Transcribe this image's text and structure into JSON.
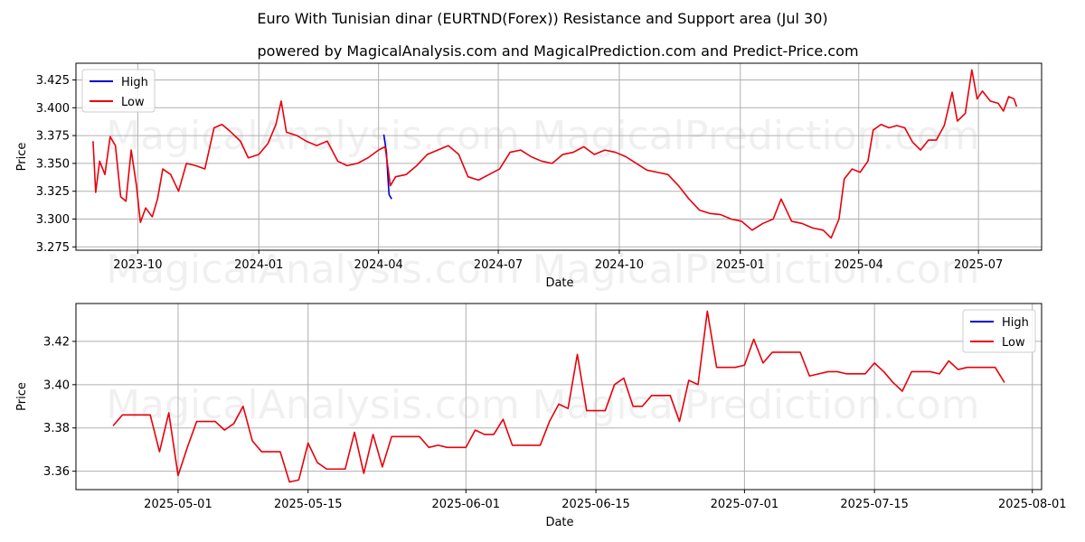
{
  "title": "Euro With Tunisian dinar (EURTND(Forex)) Resistance and Support area (Jul 30)",
  "subtitle": "powered by MagicalAnalysis.com and MagicalPrediction.com and Predict-Price.com",
  "watermarks": [
    "MagicalAnalysis.com",
    "MagicalPrediction.com"
  ],
  "colors": {
    "high": "#0000cc",
    "low": "#e8000b"
  },
  "chart_data": [
    {
      "type": "line",
      "xlabel": "Date",
      "ylabel": "Price",
      "x_axis": "date",
      "xlim": [
        "2023-08-15",
        "2025-08-18"
      ],
      "ylim": [
        3.272,
        3.44
      ],
      "xticks": [
        "2023-10-01",
        "2024-01-01",
        "2024-04-01",
        "2024-07-01",
        "2024-10-01",
        "2025-01-01",
        "2025-04-01",
        "2025-07-01"
      ],
      "xtick_labels": [
        "2023-10",
        "2024-01",
        "2024-04",
        "2024-07",
        "2024-10",
        "2025-01",
        "2025-04",
        "2025-07"
      ],
      "yticks": [
        3.275,
        3.3,
        3.325,
        3.35,
        3.375,
        3.4,
        3.425
      ],
      "ytick_labels": [
        "3.275",
        "3.300",
        "3.325",
        "3.350",
        "3.375",
        "3.400",
        "3.425"
      ],
      "grid": true,
      "legend": "top-left",
      "series_names": [
        "High",
        "Low"
      ],
      "low_points": [
        [
          "2023-08-28",
          3.37
        ],
        [
          "2023-08-30",
          3.324
        ],
        [
          "2023-09-02",
          3.352
        ],
        [
          "2023-09-06",
          3.34
        ],
        [
          "2023-09-10",
          3.374
        ],
        [
          "2023-09-14",
          3.366
        ],
        [
          "2023-09-18",
          3.32
        ],
        [
          "2023-09-22",
          3.316
        ],
        [
          "2023-09-26",
          3.362
        ],
        [
          "2023-09-30",
          3.33
        ],
        [
          "2023-10-03",
          3.297
        ],
        [
          "2023-10-07",
          3.31
        ],
        [
          "2023-10-12",
          3.302
        ],
        [
          "2023-10-16",
          3.318
        ],
        [
          "2023-10-20",
          3.345
        ],
        [
          "2023-10-26",
          3.34
        ],
        [
          "2023-11-01",
          3.325
        ],
        [
          "2023-11-07",
          3.35
        ],
        [
          "2023-11-14",
          3.348
        ],
        [
          "2023-11-21",
          3.345
        ],
        [
          "2023-11-28",
          3.382
        ],
        [
          "2023-12-04",
          3.385
        ],
        [
          "2023-12-10",
          3.379
        ],
        [
          "2023-12-18",
          3.37
        ],
        [
          "2023-12-24",
          3.355
        ],
        [
          "2024-01-01",
          3.358
        ],
        [
          "2024-01-08",
          3.368
        ],
        [
          "2024-01-14",
          3.385
        ],
        [
          "2024-01-18",
          3.406
        ],
        [
          "2024-01-22",
          3.378
        ],
        [
          "2024-01-30",
          3.375
        ],
        [
          "2024-02-06",
          3.37
        ],
        [
          "2024-02-14",
          3.366
        ],
        [
          "2024-02-22",
          3.37
        ],
        [
          "2024-03-01",
          3.352
        ],
        [
          "2024-03-08",
          3.348
        ],
        [
          "2024-03-16",
          3.35
        ],
        [
          "2024-03-24",
          3.355
        ],
        [
          "2024-04-01",
          3.362
        ],
        [
          "2024-04-06",
          3.365
        ],
        [
          "2024-04-10",
          3.33
        ],
        [
          "2024-04-14",
          3.338
        ],
        [
          "2024-04-22",
          3.34
        ],
        [
          "2024-04-30",
          3.348
        ],
        [
          "2024-05-08",
          3.358
        ],
        [
          "2024-05-16",
          3.362
        ],
        [
          "2024-05-24",
          3.366
        ],
        [
          "2024-06-01",
          3.358
        ],
        [
          "2024-06-08",
          3.338
        ],
        [
          "2024-06-16",
          3.335
        ],
        [
          "2024-06-24",
          3.34
        ],
        [
          "2024-07-02",
          3.345
        ],
        [
          "2024-07-10",
          3.36
        ],
        [
          "2024-07-18",
          3.362
        ],
        [
          "2024-07-26",
          3.356
        ],
        [
          "2024-08-03",
          3.352
        ],
        [
          "2024-08-11",
          3.35
        ],
        [
          "2024-08-19",
          3.358
        ],
        [
          "2024-08-27",
          3.36
        ],
        [
          "2024-09-04",
          3.365
        ],
        [
          "2024-09-12",
          3.358
        ],
        [
          "2024-09-20",
          3.362
        ],
        [
          "2024-09-28",
          3.36
        ],
        [
          "2024-10-06",
          3.356
        ],
        [
          "2024-10-14",
          3.35
        ],
        [
          "2024-10-22",
          3.344
        ],
        [
          "2024-10-30",
          3.342
        ],
        [
          "2024-11-07",
          3.34
        ],
        [
          "2024-11-15",
          3.33
        ],
        [
          "2024-11-23",
          3.318
        ],
        [
          "2024-12-01",
          3.308
        ],
        [
          "2024-12-09",
          3.305
        ],
        [
          "2024-12-17",
          3.304
        ],
        [
          "2024-12-25",
          3.3
        ],
        [
          "2025-01-02",
          3.298
        ],
        [
          "2025-01-10",
          3.29
        ],
        [
          "2025-01-18",
          3.296
        ],
        [
          "2025-01-26",
          3.3
        ],
        [
          "2025-02-01",
          3.318
        ],
        [
          "2025-02-09",
          3.298
        ],
        [
          "2025-02-17",
          3.296
        ],
        [
          "2025-02-25",
          3.292
        ],
        [
          "2025-03-05",
          3.29
        ],
        [
          "2025-03-11",
          3.283
        ],
        [
          "2025-03-17",
          3.3
        ],
        [
          "2025-03-21",
          3.336
        ],
        [
          "2025-03-27",
          3.345
        ],
        [
          "2025-04-02",
          3.342
        ],
        [
          "2025-04-08",
          3.352
        ],
        [
          "2025-04-12",
          3.38
        ],
        [
          "2025-04-18",
          3.385
        ],
        [
          "2025-04-24",
          3.382
        ],
        [
          "2025-04-30",
          3.384
        ],
        [
          "2025-05-06",
          3.382
        ],
        [
          "2025-05-12",
          3.369
        ],
        [
          "2025-05-18",
          3.362
        ],
        [
          "2025-05-24",
          3.371
        ],
        [
          "2025-05-30",
          3.371
        ],
        [
          "2025-06-05",
          3.384
        ],
        [
          "2025-06-11",
          3.414
        ],
        [
          "2025-06-15",
          3.388
        ],
        [
          "2025-06-21",
          3.395
        ],
        [
          "2025-06-26",
          3.434
        ],
        [
          "2025-06-30",
          3.408
        ],
        [
          "2025-07-04",
          3.415
        ],
        [
          "2025-07-10",
          3.406
        ],
        [
          "2025-07-16",
          3.404
        ],
        [
          "2025-07-20",
          3.397
        ],
        [
          "2025-07-24",
          3.41
        ],
        [
          "2025-07-28",
          3.408
        ],
        [
          "2025-07-30",
          3.401
        ]
      ],
      "high_points": [
        [
          "2024-04-05",
          3.376
        ],
        [
          "2024-04-07",
          3.36
        ],
        [
          "2024-04-08",
          3.34
        ],
        [
          "2024-04-09",
          3.322
        ],
        [
          "2024-04-11",
          3.318
        ]
      ]
    },
    {
      "type": "line",
      "xlabel": "Date",
      "ylabel": "Price",
      "x_axis": "date",
      "xlim": [
        "2025-04-20",
        "2025-08-02"
      ],
      "ylim": [
        3.3515,
        3.4375
      ],
      "xticks": [
        "2025-05-01",
        "2025-05-15",
        "2025-06-01",
        "2025-06-15",
        "2025-07-01",
        "2025-07-15",
        "2025-08-01"
      ],
      "xtick_labels": [
        "2025-05-01",
        "2025-05-15",
        "2025-06-01",
        "2025-06-15",
        "2025-07-01",
        "2025-07-15",
        "2025-08-01"
      ],
      "yticks": [
        3.36,
        3.38,
        3.4,
        3.42
      ],
      "ytick_labels": [
        "3.36",
        "3.38",
        "3.40",
        "3.42"
      ],
      "grid": true,
      "legend": "top-right",
      "series_names": [
        "High",
        "Low"
      ],
      "low_points": [
        [
          "2025-04-24",
          3.381
        ],
        [
          "2025-04-25",
          3.386
        ],
        [
          "2025-04-27",
          3.386
        ],
        [
          "2025-04-28",
          3.386
        ],
        [
          "2025-04-29",
          3.369
        ],
        [
          "2025-04-30",
          3.387
        ],
        [
          "2025-05-01",
          3.358
        ],
        [
          "2025-05-02",
          3.371
        ],
        [
          "2025-05-03",
          3.383
        ],
        [
          "2025-05-05",
          3.383
        ],
        [
          "2025-05-06",
          3.379
        ],
        [
          "2025-05-07",
          3.382
        ],
        [
          "2025-05-08",
          3.39
        ],
        [
          "2025-05-09",
          3.374
        ],
        [
          "2025-05-10",
          3.369
        ],
        [
          "2025-05-12",
          3.369
        ],
        [
          "2025-05-13",
          3.355
        ],
        [
          "2025-05-14",
          3.356
        ],
        [
          "2025-05-15",
          3.373
        ],
        [
          "2025-05-16",
          3.364
        ],
        [
          "2025-05-17",
          3.361
        ],
        [
          "2025-05-19",
          3.361
        ],
        [
          "2025-05-20",
          3.378
        ],
        [
          "2025-05-21",
          3.359
        ],
        [
          "2025-05-22",
          3.377
        ],
        [
          "2025-05-23",
          3.362
        ],
        [
          "2025-05-24",
          3.376
        ],
        [
          "2025-05-26",
          3.376
        ],
        [
          "2025-05-27",
          3.376
        ],
        [
          "2025-05-28",
          3.371
        ],
        [
          "2025-05-29",
          3.372
        ],
        [
          "2025-05-30",
          3.371
        ],
        [
          "2025-05-31",
          3.371
        ],
        [
          "2025-06-01",
          3.371
        ],
        [
          "2025-06-02",
          3.379
        ],
        [
          "2025-06-03",
          3.377
        ],
        [
          "2025-06-04",
          3.377
        ],
        [
          "2025-06-05",
          3.384
        ],
        [
          "2025-06-06",
          3.372
        ],
        [
          "2025-06-07",
          3.372
        ],
        [
          "2025-06-09",
          3.372
        ],
        [
          "2025-06-10",
          3.383
        ],
        [
          "2025-06-11",
          3.391
        ],
        [
          "2025-06-12",
          3.389
        ],
        [
          "2025-06-13",
          3.414
        ],
        [
          "2025-06-14",
          3.388
        ],
        [
          "2025-06-16",
          3.388
        ],
        [
          "2025-06-17",
          3.4
        ],
        [
          "2025-06-18",
          3.403
        ],
        [
          "2025-06-19",
          3.39
        ],
        [
          "2025-06-20",
          3.39
        ],
        [
          "2025-06-21",
          3.395
        ],
        [
          "2025-06-23",
          3.395
        ],
        [
          "2025-06-24",
          3.383
        ],
        [
          "2025-06-25",
          3.402
        ],
        [
          "2025-06-26",
          3.4
        ],
        [
          "2025-06-27",
          3.434
        ],
        [
          "2025-06-28",
          3.408
        ],
        [
          "2025-06-30",
          3.408
        ],
        [
          "2025-07-01",
          3.409
        ],
        [
          "2025-07-02",
          3.421
        ],
        [
          "2025-07-03",
          3.41
        ],
        [
          "2025-07-04",
          3.415
        ],
        [
          "2025-07-05",
          3.415
        ],
        [
          "2025-07-07",
          3.415
        ],
        [
          "2025-07-08",
          3.404
        ],
        [
          "2025-07-09",
          3.405
        ],
        [
          "2025-07-10",
          3.406
        ],
        [
          "2025-07-11",
          3.406
        ],
        [
          "2025-07-12",
          3.405
        ],
        [
          "2025-07-14",
          3.405
        ],
        [
          "2025-07-15",
          3.41
        ],
        [
          "2025-07-16",
          3.406
        ],
        [
          "2025-07-17",
          3.401
        ],
        [
          "2025-07-18",
          3.397
        ],
        [
          "2025-07-19",
          3.406
        ],
        [
          "2025-07-21",
          3.406
        ],
        [
          "2025-07-22",
          3.405
        ],
        [
          "2025-07-23",
          3.411
        ],
        [
          "2025-07-24",
          3.407
        ],
        [
          "2025-07-25",
          3.408
        ],
        [
          "2025-07-26",
          3.408
        ],
        [
          "2025-07-28",
          3.408
        ],
        [
          "2025-07-29",
          3.401
        ]
      ],
      "high_points": []
    }
  ]
}
